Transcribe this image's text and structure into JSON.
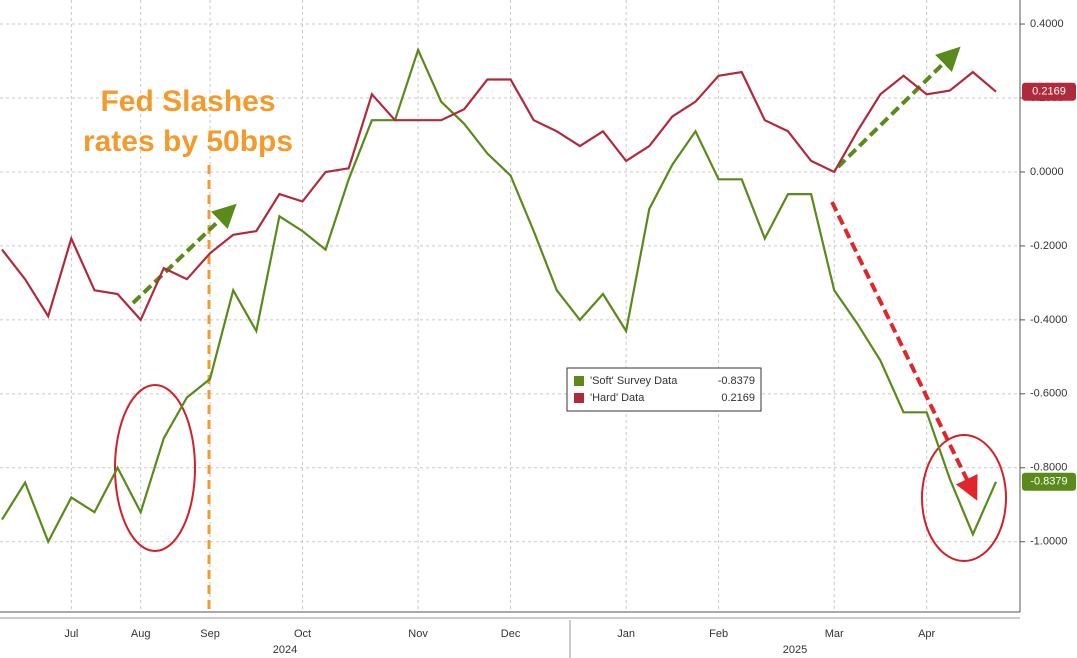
{
  "chart_data": {
    "type": "line",
    "annotation": [
      "Fed Slashes",
      "rates by 50bps"
    ],
    "categories": [
      null,
      null,
      null,
      "Jul",
      null,
      null,
      "Aug",
      null,
      null,
      "Sep",
      null,
      null,
      null,
      "Oct",
      null,
      null,
      null,
      null,
      "Nov",
      null,
      null,
      null,
      "Dec",
      null,
      null,
      null,
      null,
      "Jan",
      null,
      null,
      null,
      "Feb",
      null,
      null,
      null,
      null,
      "Mar",
      null,
      null,
      null,
      "Apr",
      null,
      null,
      null
    ],
    "year_labels": [
      "2024",
      "2025"
    ],
    "series": [
      {
        "name": "'Soft' Survey Data",
        "color": "#5a8a1a",
        "last_label": "-0.8379",
        "values": [
          -0.94,
          -0.84,
          -1.0,
          -0.88,
          -0.92,
          -0.8,
          -0.92,
          -0.72,
          -0.61,
          -0.56,
          -0.32,
          -0.43,
          -0.12,
          -0.16,
          -0.21,
          -0.02,
          0.14,
          0.14,
          0.33,
          0.19,
          0.13,
          0.05,
          -0.01,
          -0.16,
          -0.32,
          -0.4,
          -0.33,
          -0.43,
          -0.1,
          0.02,
          0.11,
          -0.02,
          -0.02,
          -0.18,
          -0.06,
          -0.06,
          -0.32,
          -0.41,
          -0.51,
          -0.65,
          -0.65,
          -0.83,
          -0.98,
          -0.8379
        ]
      },
      {
        "name": "'Hard' Data",
        "color": "#b02a3c",
        "last_label": "0.2169",
        "values": [
          -0.21,
          -0.29,
          -0.39,
          -0.18,
          -0.32,
          -0.33,
          -0.4,
          -0.26,
          -0.29,
          -0.22,
          -0.17,
          -0.16,
          -0.06,
          -0.08,
          0.0,
          0.01,
          0.21,
          0.14,
          0.14,
          0.14,
          0.17,
          0.25,
          0.25,
          0.14,
          0.11,
          0.07,
          0.11,
          0.03,
          0.07,
          0.15,
          0.19,
          0.26,
          0.27,
          0.14,
          0.11,
          0.03,
          0.0,
          0.11,
          0.21,
          0.26,
          0.21,
          0.22,
          0.27,
          0.2169
        ]
      }
    ],
    "ylim": [
      -1.19,
      0.465
    ],
    "yticks": [
      {
        "value": 0.4,
        "label": "0.4000"
      },
      {
        "value": 0.2,
        "label": "0.2000"
      },
      {
        "value": 0,
        "label": "0.0000"
      },
      {
        "value": -0.2,
        "label": "-0.2000"
      },
      {
        "value": -0.4,
        "label": "-0.4000"
      },
      {
        "value": -0.6,
        "label": "-0.6000"
      },
      {
        "value": -0.8,
        "label": "-0.8000"
      },
      {
        "value": -1.0,
        "label": "-1.0000"
      }
    ],
    "grid": true,
    "legend": "center"
  }
}
